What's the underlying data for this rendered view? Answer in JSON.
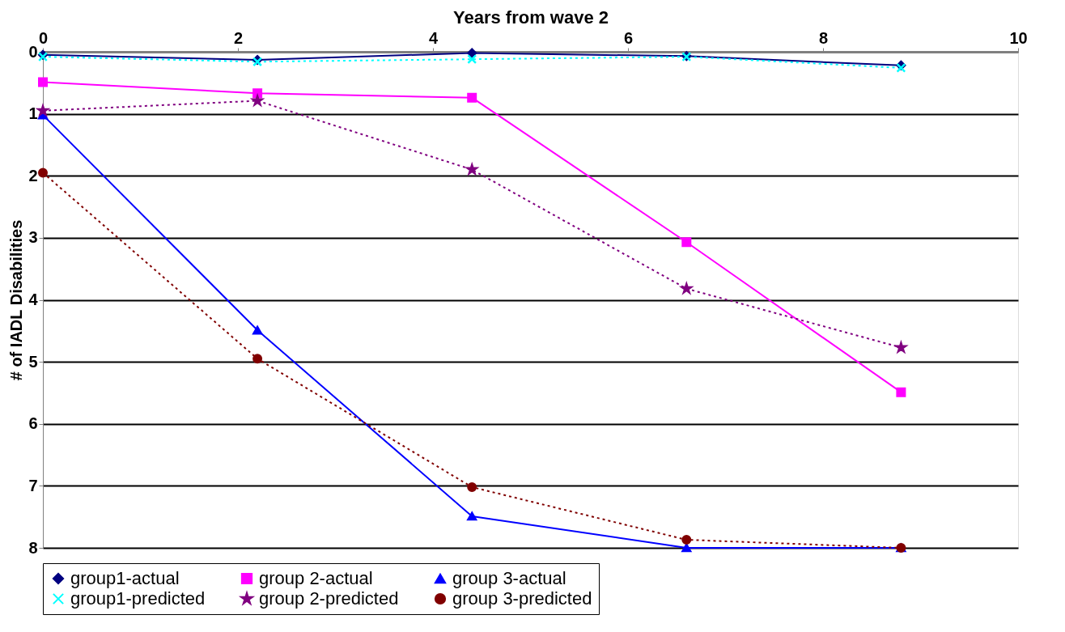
{
  "chart_data": {
    "type": "line",
    "xlabel": "Years from wave 2",
    "ylabel": "# of IADL Disabilities",
    "x": [
      0,
      2.2,
      4.4,
      6.6,
      8.8
    ],
    "xlim": [
      0,
      10
    ],
    "xticks": [
      0,
      2,
      4,
      6,
      8,
      10
    ],
    "ylim": [
      8,
      0
    ],
    "yticks": [
      0,
      1,
      2,
      3,
      4,
      5,
      6,
      7,
      8
    ],
    "grid": "y",
    "legend": "bottom",
    "series": [
      {
        "name": "group1-actual",
        "color": "#000080",
        "marker": "diamond",
        "line_style": "solid",
        "values": [
          0.05,
          0.13,
          0.02,
          0.07,
          0.22
        ]
      },
      {
        "name": "group 2-actual",
        "color": "#ff00ff",
        "marker": "square",
        "line_style": "solid",
        "values": [
          0.49,
          0.67,
          0.74,
          3.07,
          5.49
        ]
      },
      {
        "name": "group 3-actual",
        "color": "#0000ff",
        "marker": "triangle",
        "line_style": "solid",
        "values": [
          1.02,
          4.49,
          7.49,
          8,
          8
        ]
      },
      {
        "name": "group1-predicted",
        "color": "#00ffff",
        "marker": "cross",
        "line_style": "dotted",
        "values": [
          0.08,
          0.16,
          0.12,
          0.08,
          0.26
        ]
      },
      {
        "name": "group 2-predicted",
        "color": "#800080",
        "marker": "star",
        "line_style": "dotted",
        "values": [
          0.95,
          0.79,
          1.9,
          3.82,
          4.77
        ]
      },
      {
        "name": "group 3-predicted",
        "color": "#800000",
        "marker": "circle",
        "line_style": "dotted",
        "values": [
          1.95,
          4.95,
          7.02,
          7.87,
          8
        ]
      }
    ]
  }
}
